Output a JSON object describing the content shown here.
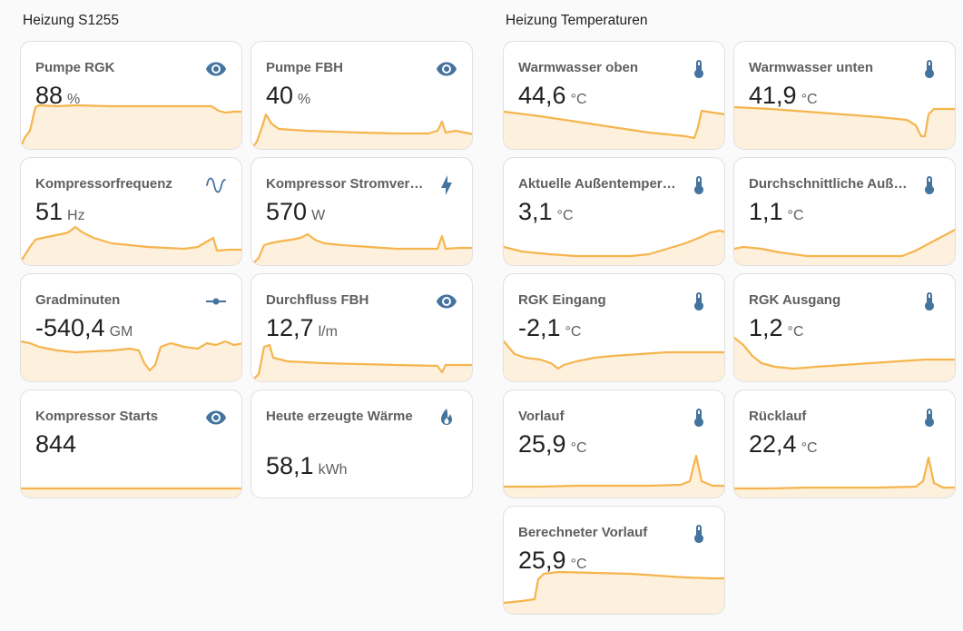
{
  "sections": [
    {
      "title": "Heizung S1255"
    },
    {
      "title": "Heizung Temperaturen"
    }
  ],
  "colors": {
    "icon": "#44739e",
    "line": "#f5b54e",
    "fill": "#fdf0dc"
  },
  "cards": [
    {
      "id": "pumpe-rgk",
      "name": "Pumpe RGK",
      "value": "88",
      "unit": "%",
      "icon": "eye-icon"
    },
    {
      "id": "pumpe-fbh",
      "name": "Pumpe FBH",
      "value": "40",
      "unit": "%",
      "icon": "eye-icon"
    },
    {
      "id": "kompressorfrequenz",
      "name": "Kompressorfrequenz",
      "value": "51",
      "unit": "Hz",
      "icon": "sine-wave-icon"
    },
    {
      "id": "kompressor-stromverbrauch",
      "name": "Kompressor Stromverbr…",
      "value": "570",
      "unit": "W",
      "icon": "lightning-bolt-icon"
    },
    {
      "id": "gradminuten",
      "name": "Gradminuten",
      "value": "-540,4",
      "unit": "GM",
      "icon": "commit-icon"
    },
    {
      "id": "durchfluss-fbh",
      "name": "Durchfluss FBH",
      "value": "12,7",
      "unit": "l/m",
      "icon": "eye-icon"
    },
    {
      "id": "kompressor-starts",
      "name": "Kompressor Starts",
      "value": "844",
      "unit": "",
      "icon": "eye-icon"
    },
    {
      "id": "heute-erzeugte-waerme",
      "name": "Heute erzeugte Wärme",
      "value": "58,1",
      "unit": "kWh",
      "icon": "fire-icon"
    },
    {
      "id": "warmwasser-oben",
      "name": "Warmwasser oben",
      "value": "44,6",
      "unit": "°C",
      "icon": "thermometer-icon"
    },
    {
      "id": "warmwasser-unten",
      "name": "Warmwasser unten",
      "value": "41,9",
      "unit": "°C",
      "icon": "thermometer-icon"
    },
    {
      "id": "aktuelle-aussentemperatur",
      "name": "Aktuelle Außentemperat…",
      "value": "3,1",
      "unit": "°C",
      "icon": "thermometer-icon"
    },
    {
      "id": "durchschnittliche-aussentemperatur",
      "name": "Durchschnittliche Außen…",
      "value": "1,1",
      "unit": "°C",
      "icon": "thermometer-icon"
    },
    {
      "id": "rgk-eingang",
      "name": "RGK Eingang",
      "value": "-2,1",
      "unit": "°C",
      "icon": "thermometer-icon"
    },
    {
      "id": "rgk-ausgang",
      "name": "RGK Ausgang",
      "value": "1,2",
      "unit": "°C",
      "icon": "thermometer-icon"
    },
    {
      "id": "vorlauf",
      "name": "Vorlauf",
      "value": "25,9",
      "unit": "°C",
      "icon": "thermometer-icon"
    },
    {
      "id": "ruecklauf",
      "name": "Rücklauf",
      "value": "22,4",
      "unit": "°C",
      "icon": "thermometer-icon"
    },
    {
      "id": "berechneter-vorlauf",
      "name": "Berechneter Vorlauf",
      "value": "25,9",
      "unit": "°C",
      "icon": "thermometer-icon"
    }
  ]
}
